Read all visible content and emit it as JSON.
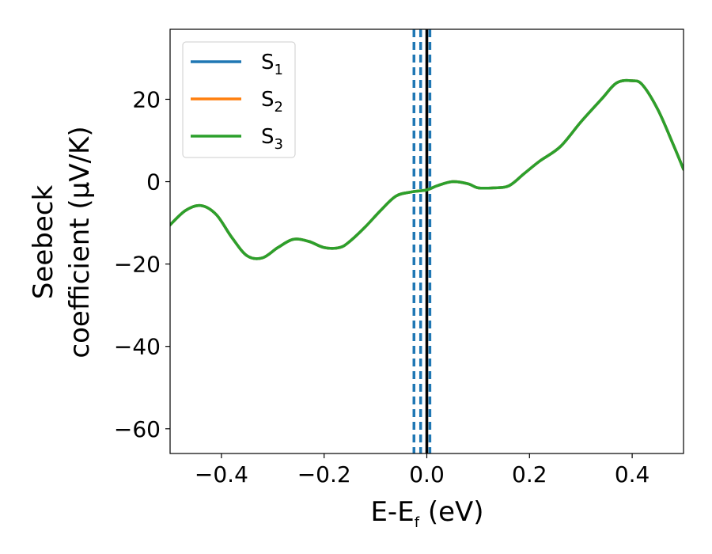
{
  "chart_data": {
    "type": "line",
    "xlabel": "E-E",
    "xlabel_sub": "f",
    "xlabel_unit": " (eV)",
    "ylabel_line1": "Seebeck",
    "ylabel_line2": "coefficient  (μV/K)",
    "xlim": [
      -0.5,
      0.5
    ],
    "ylim": [
      -66,
      37
    ],
    "xticks": [
      -0.4,
      -0.2,
      0.0,
      0.2,
      0.4
    ],
    "xtick_labels": [
      "−0.4",
      "−0.2",
      "0.0",
      "0.2",
      "0.4"
    ],
    "yticks": [
      20,
      0,
      -20,
      -40,
      -60
    ],
    "ytick_labels": [
      "20",
      "0",
      "−20",
      "−40",
      "−60"
    ],
    "grid": false,
    "legend_position": "top-left",
    "x": [
      -0.5,
      -0.47,
      -0.44,
      -0.41,
      -0.38,
      -0.35,
      -0.32,
      -0.29,
      -0.26,
      -0.23,
      -0.2,
      -0.17,
      -0.15,
      -0.12,
      -0.09,
      -0.06,
      -0.03,
      0.0,
      0.02,
      0.05,
      0.08,
      0.1,
      0.13,
      0.16,
      0.19,
      0.22,
      0.26,
      0.3,
      0.34,
      0.37,
      0.4,
      0.42,
      0.45,
      0.48,
      0.5
    ],
    "series": [
      {
        "name": "S",
        "sub": "1",
        "color": "#1f77b4",
        "values": [
          -10.5,
          -7.0,
          -5.8,
          -8.0,
          -13.5,
          -18.0,
          -18.5,
          -16.0,
          -14.0,
          -14.5,
          -16.0,
          -16.0,
          -14.5,
          -11.0,
          -7.0,
          -3.5,
          -2.5,
          -2.0,
          -1.0,
          0.0,
          -0.5,
          -1.5,
          -1.5,
          -1.0,
          2.0,
          5.0,
          8.5,
          14.5,
          20.0,
          24.0,
          24.5,
          23.5,
          17.5,
          9.0,
          3.0
        ]
      },
      {
        "name": "S",
        "sub": "2",
        "color": "#ff7f0e",
        "values": [
          -10.5,
          -7.0,
          -5.8,
          -8.0,
          -13.5,
          -18.0,
          -18.5,
          -16.0,
          -14.0,
          -14.5,
          -16.0,
          -16.0,
          -14.5,
          -11.0,
          -7.0,
          -3.5,
          -2.5,
          -2.0,
          -1.0,
          0.0,
          -0.5,
          -1.5,
          -1.5,
          -1.0,
          2.0,
          5.0,
          8.5,
          14.5,
          20.0,
          24.0,
          24.5,
          23.5,
          17.5,
          9.0,
          3.0
        ]
      },
      {
        "name": "S",
        "sub": "3",
        "color": "#2ca02c",
        "values": [
          -10.5,
          -7.0,
          -5.8,
          -8.0,
          -13.5,
          -18.0,
          -18.5,
          -16.0,
          -14.0,
          -14.5,
          -16.0,
          -16.0,
          -14.5,
          -11.0,
          -7.0,
          -3.5,
          -2.5,
          -2.0,
          -1.0,
          0.0,
          -0.5,
          -1.5,
          -1.5,
          -1.0,
          2.0,
          5.0,
          8.5,
          14.5,
          20.0,
          24.0,
          24.5,
          23.5,
          17.5,
          9.0,
          3.0
        ]
      }
    ],
    "vertical_lines": [
      {
        "x": -0.025,
        "style": "dashed",
        "color": "#1f77b4"
      },
      {
        "x": -0.012,
        "style": "dashed",
        "color": "#1f77b4"
      },
      {
        "x": 0.006,
        "style": "dashed",
        "color": "#1f77b4"
      },
      {
        "x": 0.0,
        "style": "solid",
        "color": "#000000"
      }
    ]
  }
}
